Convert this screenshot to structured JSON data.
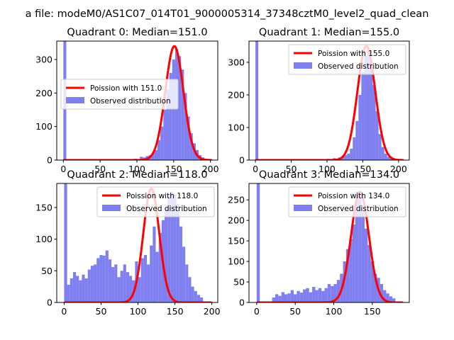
{
  "suptitle": "a file: modeM0/AS1C07_014T01_9000005314_37348cztM0_level2_quad_clean",
  "colors": {
    "poisson": "#ff0000",
    "observed": "#7f7ff0"
  },
  "chart_data": [
    {
      "type": "bar",
      "title": "Quadrant 0: Median=151.0",
      "xlim": [
        -9,
        210
      ],
      "ylim": [
        0,
        355
      ],
      "xticks": [
        0,
        50,
        100,
        150,
        200
      ],
      "xtick_labels": [
        "0",
        "50",
        "100",
        "150",
        "200"
      ],
      "yticks": [
        0,
        100,
        200,
        300
      ],
      "ytick_labels": [
        "0",
        "100",
        "200",
        "300"
      ],
      "legend": {
        "position": "center-left",
        "entries": [
          "Poission with 151.0",
          "Observed distribution"
        ]
      },
      "poisson_mean": 151.0,
      "poisson_peak": 340,
      "series": [
        {
          "name": "Observed distribution",
          "bin_width": 4,
          "bins": [
            [
              0,
              355
            ],
            [
              96,
              4
            ],
            [
              104,
              10
            ],
            [
              108,
              8
            ],
            [
              112,
              12
            ],
            [
              116,
              15
            ],
            [
              120,
              22
            ],
            [
              124,
              30
            ],
            [
              128,
              60
            ],
            [
              132,
              100
            ],
            [
              136,
              150
            ],
            [
              140,
              210
            ],
            [
              144,
              260
            ],
            [
              148,
              300
            ],
            [
              152,
              330
            ],
            [
              156,
              310
            ],
            [
              160,
              270
            ],
            [
              164,
              200
            ],
            [
              168,
              130
            ],
            [
              172,
              80
            ],
            [
              176,
              50
            ],
            [
              180,
              30
            ],
            [
              184,
              15
            ],
            [
              188,
              8
            ],
            [
              192,
              4
            ]
          ]
        }
      ]
    },
    {
      "type": "bar",
      "title": "Quadrant 1: Median=155.0",
      "xlim": [
        -9,
        215
      ],
      "ylim": [
        0,
        365
      ],
      "xticks": [
        0,
        50,
        100,
        150,
        200
      ],
      "xtick_labels": [
        "0",
        "50",
        "100",
        "150",
        "200"
      ],
      "yticks": [
        0,
        100,
        200,
        300
      ],
      "ytick_labels": [
        "0",
        "100",
        "200",
        "300"
      ],
      "legend": {
        "position": "top-right",
        "entries": [
          "Poission with 155.0",
          "Observed distribution"
        ]
      },
      "poisson_mean": 155.0,
      "poisson_peak": 350,
      "series": [
        {
          "name": "Observed distribution",
          "bin_width": 4,
          "bins": [
            [
              0,
              365
            ],
            [
              100,
              4
            ],
            [
              108,
              6
            ],
            [
              116,
              8
            ],
            [
              120,
              10
            ],
            [
              124,
              15
            ],
            [
              128,
              20
            ],
            [
              132,
              35
            ],
            [
              136,
              70
            ],
            [
              140,
              120
            ],
            [
              144,
              200
            ],
            [
              148,
              270
            ],
            [
              152,
              320
            ],
            [
              156,
              340
            ],
            [
              160,
              300
            ],
            [
              164,
              230
            ],
            [
              168,
              150
            ],
            [
              172,
              80
            ],
            [
              176,
              40
            ],
            [
              180,
              20
            ],
            [
              184,
              10
            ],
            [
              188,
              6
            ],
            [
              196,
              4
            ]
          ]
        }
      ]
    },
    {
      "type": "bar",
      "title": "Quadrant 2: Median=118.0",
      "xlim": [
        -10,
        208
      ],
      "ylim": [
        0,
        188
      ],
      "xticks": [
        0,
        50,
        100,
        150,
        200
      ],
      "xtick_labels": [
        "0",
        "50",
        "100",
        "150",
        "200"
      ],
      "yticks": [
        0,
        50,
        100,
        150
      ],
      "ytick_labels": [
        "0",
        "50",
        "100",
        "150"
      ],
      "legend": {
        "position": "top-right",
        "entries": [
          "Poission with 118.0",
          "Observed distribution"
        ]
      },
      "poisson_mean": 118.0,
      "poisson_peak": 180,
      "series": [
        {
          "name": "Observed distribution",
          "bin_width": 4,
          "bins": [
            [
              0,
              188
            ],
            [
              4,
              28
            ],
            [
              8,
              38
            ],
            [
              12,
              48
            ],
            [
              16,
              42
            ],
            [
              20,
              35
            ],
            [
              24,
              44
            ],
            [
              28,
              38
            ],
            [
              32,
              52
            ],
            [
              36,
              58
            ],
            [
              40,
              60
            ],
            [
              44,
              70
            ],
            [
              48,
              75
            ],
            [
              52,
              74
            ],
            [
              56,
              82
            ],
            [
              60,
              68
            ],
            [
              64,
              56
            ],
            [
              68,
              60
            ],
            [
              72,
              40
            ],
            [
              76,
              50
            ],
            [
              80,
              60
            ],
            [
              84,
              48
            ],
            [
              88,
              42
            ],
            [
              92,
              35
            ],
            [
              96,
              65
            ],
            [
              100,
              40
            ],
            [
              104,
              70
            ],
            [
              108,
              75
            ],
            [
              112,
              60
            ],
            [
              116,
              90
            ],
            [
              120,
              120
            ],
            [
              124,
              80
            ],
            [
              128,
              110
            ],
            [
              132,
              130
            ],
            [
              136,
              150
            ],
            [
              140,
              168
            ],
            [
              144,
              175
            ],
            [
              148,
              170
            ],
            [
              152,
              155
            ],
            [
              156,
              120
            ],
            [
              160,
              88
            ],
            [
              164,
              60
            ],
            [
              168,
              40
            ],
            [
              172,
              25
            ],
            [
              176,
              18
            ],
            [
              180,
              12
            ],
            [
              184,
              8
            ]
          ]
        }
      ]
    },
    {
      "type": "bar",
      "title": "Quadrant 3: Median=134.0",
      "xlim": [
        -10,
        198
      ],
      "ylim": [
        0,
        290
      ],
      "xticks": [
        0,
        50,
        100,
        150
      ],
      "xtick_labels": [
        "0",
        "50",
        "100",
        "150"
      ],
      "yticks": [
        0,
        50,
        100,
        150,
        200,
        250
      ],
      "ytick_labels": [
        "0",
        "50",
        "100",
        "150",
        "200",
        "250"
      ],
      "legend": {
        "position": "top-right",
        "entries": [
          "Poission with 134.0",
          "Observed distribution"
        ]
      },
      "poisson_mean": 134.0,
      "poisson_peak": 270,
      "series": [
        {
          "name": "Observed distribution",
          "bin_width": 4,
          "bins": [
            [
              0,
              290
            ],
            [
              20,
              12
            ],
            [
              24,
              20
            ],
            [
              28,
              16
            ],
            [
              32,
              25
            ],
            [
              36,
              20
            ],
            [
              40,
              22
            ],
            [
              44,
              30
            ],
            [
              48,
              20
            ],
            [
              52,
              28
            ],
            [
              56,
              24
            ],
            [
              60,
              32
            ],
            [
              64,
              35
            ],
            [
              68,
              25
            ],
            [
              72,
              38
            ],
            [
              76,
              30
            ],
            [
              80,
              35
            ],
            [
              84,
              28
            ],
            [
              88,
              35
            ],
            [
              92,
              45
            ],
            [
              96,
              40
            ],
            [
              100,
              45
            ],
            [
              104,
              55
            ],
            [
              108,
              70
            ],
            [
              112,
              100
            ],
            [
              116,
              130
            ],
            [
              120,
              155
            ],
            [
              124,
              190
            ],
            [
              128,
              270
            ],
            [
              132,
              265
            ],
            [
              136,
              225
            ],
            [
              140,
              180
            ],
            [
              144,
              140
            ],
            [
              148,
              100
            ],
            [
              152,
              70
            ],
            [
              156,
              60
            ],
            [
              160,
              45
            ],
            [
              164,
              30
            ],
            [
              168,
              22
            ],
            [
              172,
              15
            ],
            [
              176,
              10
            ]
          ]
        }
      ]
    }
  ]
}
